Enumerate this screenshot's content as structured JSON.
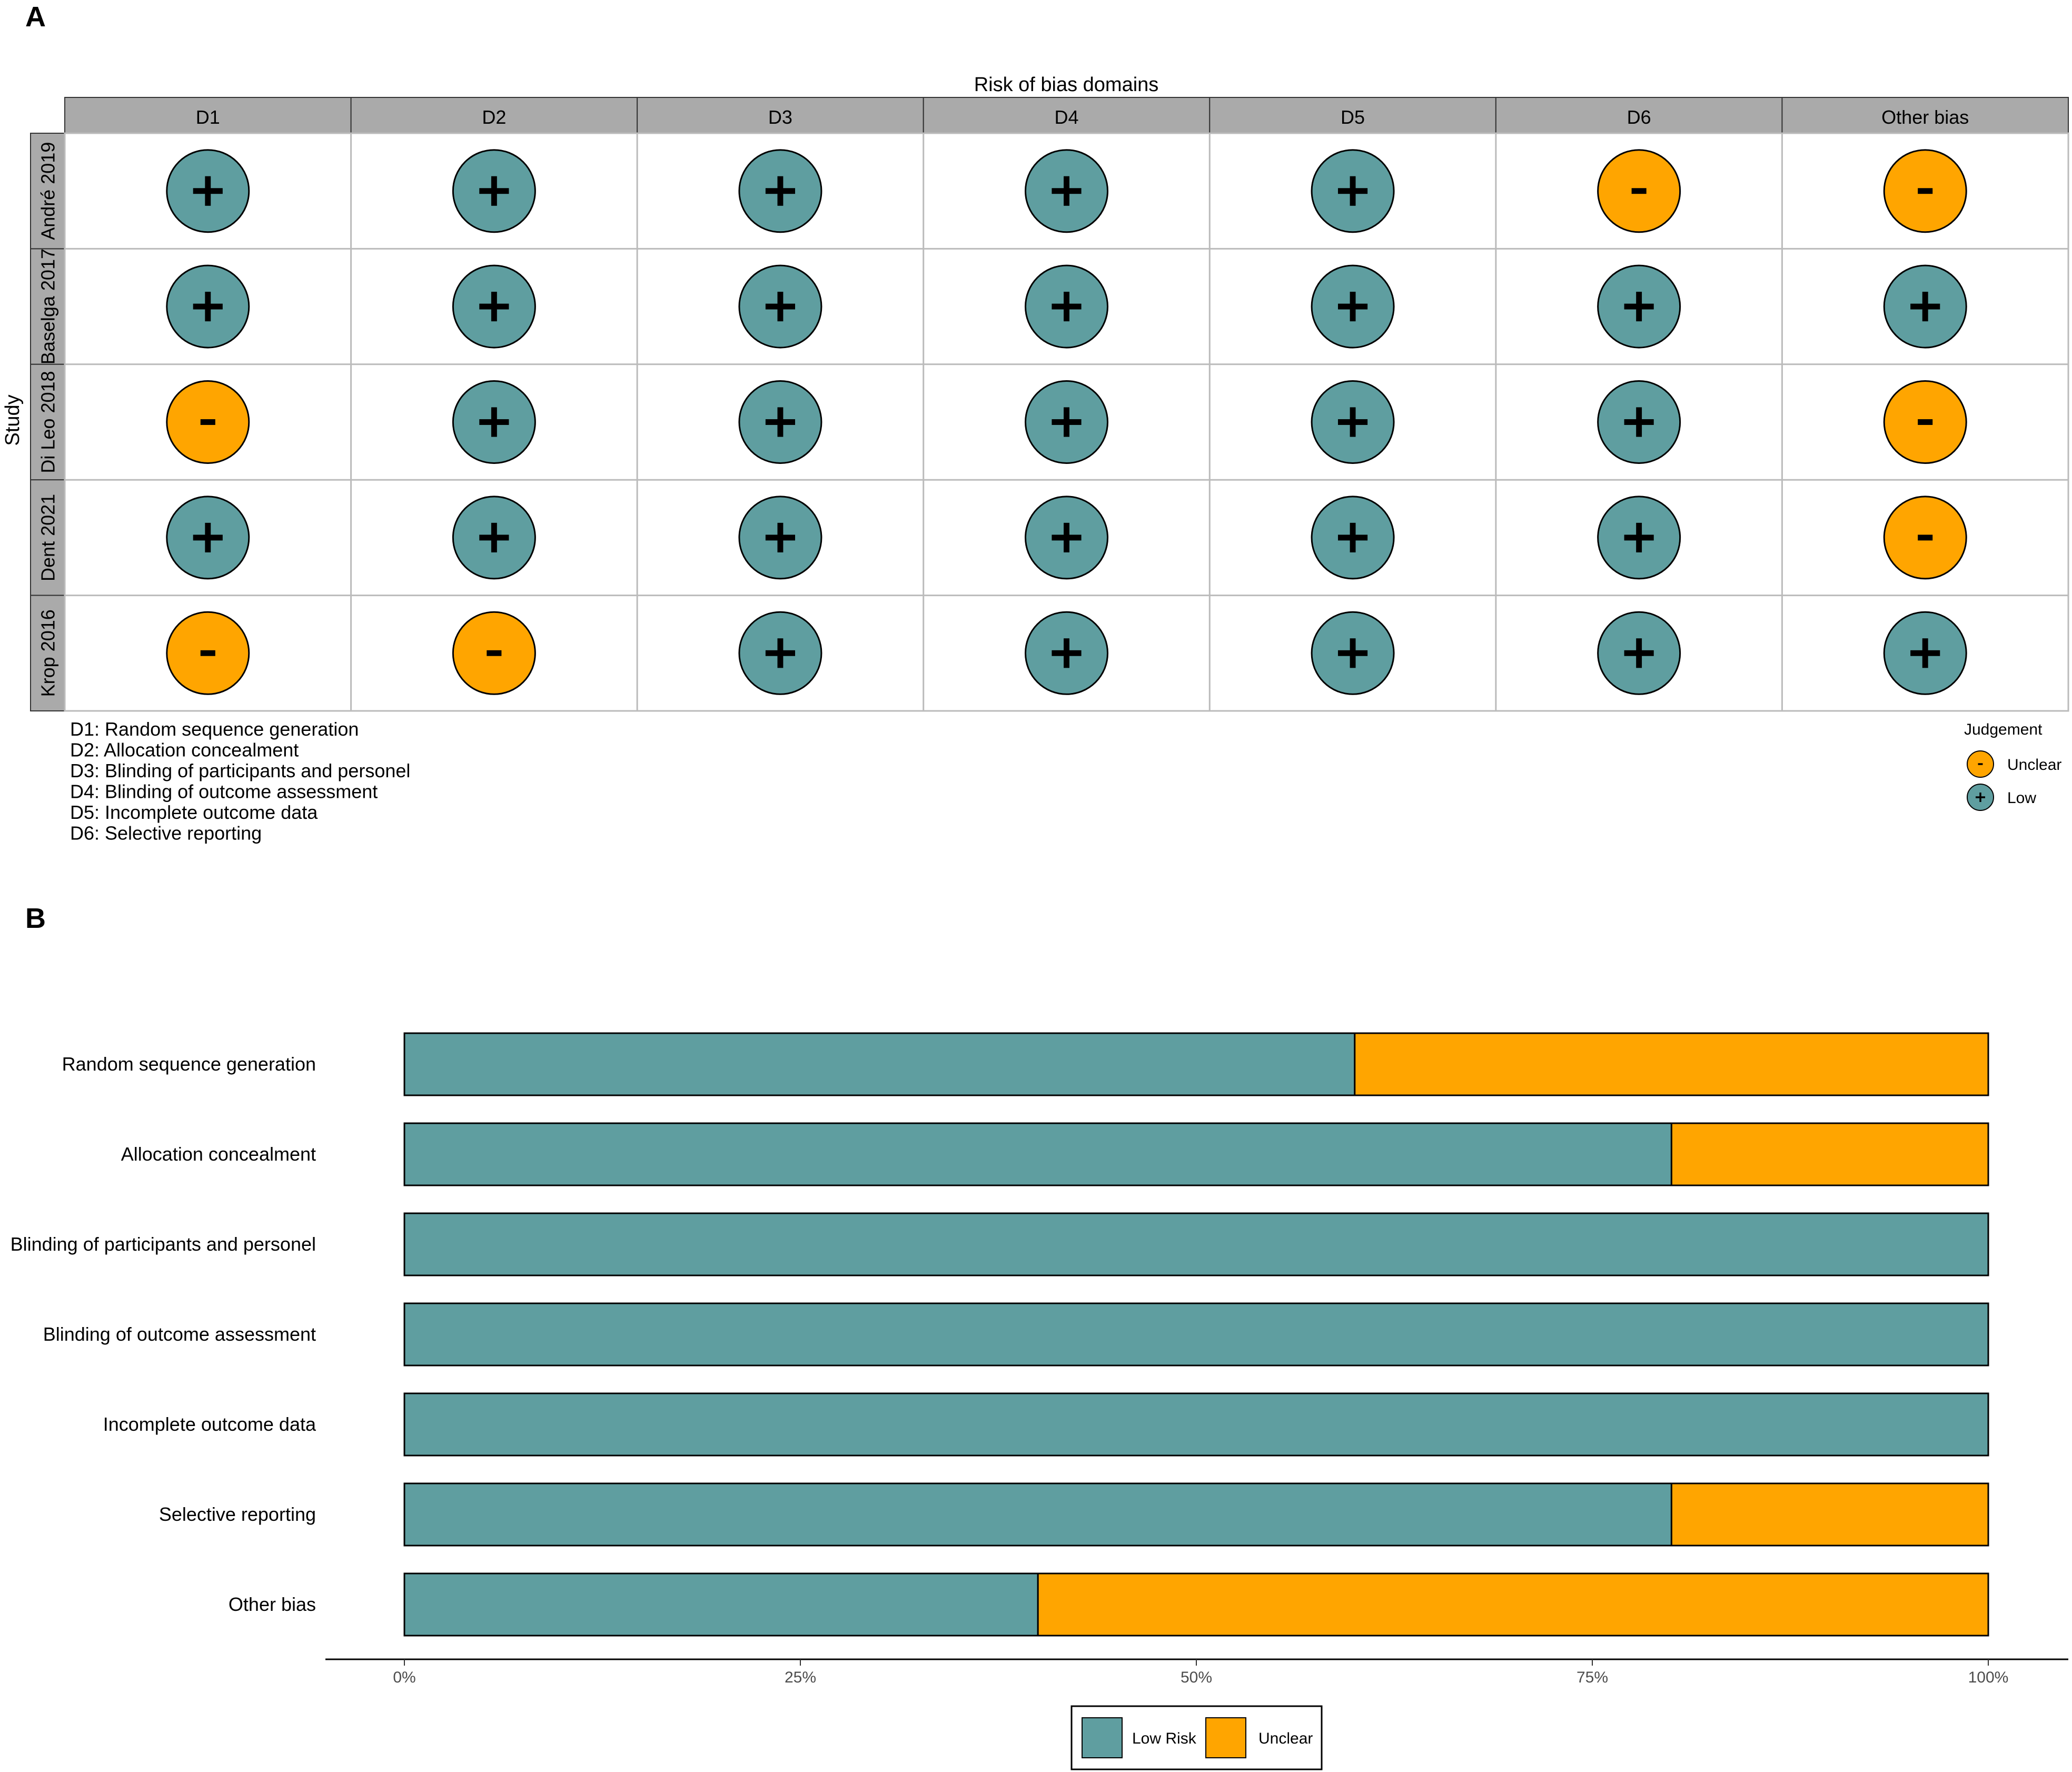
{
  "panel_a": {
    "label": "A",
    "domains_title": "Risk of bias domains",
    "study_axis_label": "Study",
    "judgement_title": "Judgement"
  },
  "panel_b": {
    "label": "B"
  },
  "colors": {
    "low": "#5F9EA0",
    "unclear": "#FFA500",
    "header_fill": "#AAAAAA",
    "grid": "#BBBBBB"
  },
  "chart_data": [
    {
      "type": "table",
      "title": "Risk of bias domains",
      "columns": [
        "D1",
        "D2",
        "D3",
        "D4",
        "D5",
        "D6",
        "Other bias"
      ],
      "rows": [
        "André 2019",
        "Baselga 2017",
        "Di Leo 2018",
        "Dent 2021",
        "Krop 2016"
      ],
      "judgements": [
        [
          "Low",
          "Low",
          "Low",
          "Low",
          "Low",
          "Unclear",
          "Unclear"
        ],
        [
          "Low",
          "Low",
          "Low",
          "Low",
          "Low",
          "Low",
          "Low"
        ],
        [
          "Unclear",
          "Low",
          "Low",
          "Low",
          "Low",
          "Low",
          "Unclear"
        ],
        [
          "Low",
          "Low",
          "Low",
          "Low",
          "Low",
          "Low",
          "Unclear"
        ],
        [
          "Unclear",
          "Unclear",
          "Low",
          "Low",
          "Low",
          "Low",
          "Low"
        ]
      ],
      "symbols": {
        "Low": "+",
        "Unclear": "-"
      },
      "domain_key": [
        "D1: Random sequence generation",
        "D2: Allocation concealment",
        "D3: Blinding of participants and personel",
        "D4: Blinding of outcome assessment",
        "D5: Incomplete outcome data",
        "D6: Selective reporting"
      ],
      "legend": [
        {
          "symbol": "-",
          "label": "Unclear",
          "key": "unclear"
        },
        {
          "symbol": "+",
          "label": "Low",
          "key": "low"
        }
      ]
    },
    {
      "type": "bar",
      "orientation": "horizontal",
      "stacked": true,
      "categories": [
        "Random sequence generation",
        "Allocation concealment",
        "Blinding of participants and personel",
        "Blinding of outcome assessment",
        "Incomplete outcome data",
        "Selective reporting",
        "Other bias"
      ],
      "series": [
        {
          "name": "Low Risk",
          "key": "low",
          "values": [
            60,
            80,
            100,
            100,
            100,
            80,
            40
          ]
        },
        {
          "name": "Unclear",
          "key": "unclear",
          "values": [
            40,
            20,
            0,
            0,
            0,
            20,
            60
          ]
        }
      ],
      "xlim": [
        0,
        100
      ],
      "xticks": [
        0,
        25,
        50,
        75,
        100
      ],
      "xtick_labels": [
        "0%",
        "25%",
        "50%",
        "75%",
        "100%"
      ],
      "legend_position": "bottom"
    }
  ]
}
